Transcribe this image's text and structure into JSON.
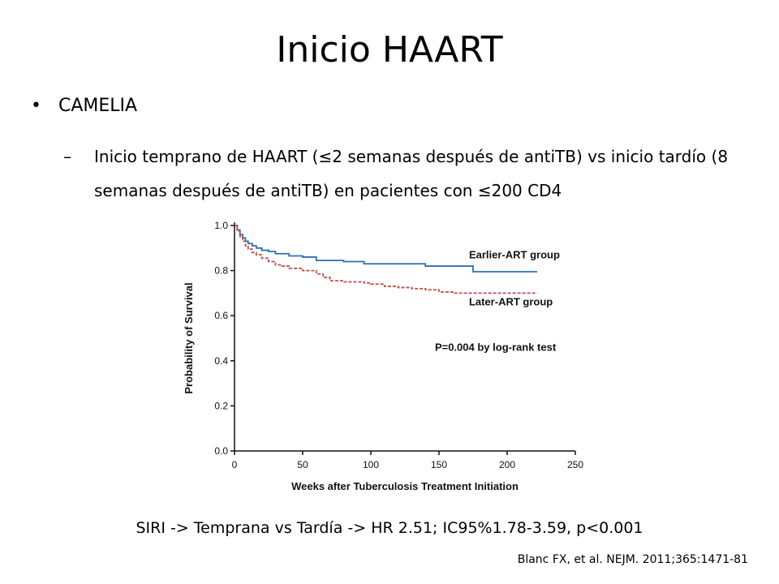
{
  "slide": {
    "title": "Inicio HAART",
    "bullet": "CAMELIA",
    "subbullet": "Inicio temprano de HAART (≤2 semanas después de antiTB) vs inicio tardío (8 semanas después de antiTB) en pacientes con ≤200 CD4",
    "footer": "SIRI -> Temprana vs Tardía -> HR 2.51; IC95%1.78-3.59, p<0.001",
    "citation": "Blanc FX, et al. NEJM. 2011;365:1471-81",
    "bullet_glyph": "•",
    "dash_glyph": "–"
  },
  "chart_data": {
    "type": "line",
    "step": true,
    "xlabel": "Weeks after Tuberculosis Treatment Initiation",
    "ylabel": "Probability of Survival",
    "xlim": [
      0,
      250
    ],
    "ylim": [
      0,
      1.0
    ],
    "xticks": [
      0,
      50,
      100,
      150,
      200,
      250
    ],
    "yticks": [
      "0.0",
      "0.2",
      "0.4",
      "0.6",
      "0.8",
      "1.0"
    ],
    "grid": false,
    "annotation": "P=0.004 by log-rank test",
    "series": [
      {
        "name": "Earlier-ART group",
        "color": "#2e6db4",
        "dash": false,
        "x": [
          0,
          2,
          4,
          6,
          8,
          10,
          13,
          16,
          20,
          25,
          30,
          40,
          50,
          60,
          80,
          95,
          100,
          110,
          125,
          140,
          172,
          175,
          190,
          200,
          222
        ],
        "y": [
          1.0,
          0.98,
          0.96,
          0.945,
          0.93,
          0.92,
          0.91,
          0.9,
          0.89,
          0.885,
          0.875,
          0.865,
          0.86,
          0.845,
          0.84,
          0.83,
          0.83,
          0.83,
          0.83,
          0.82,
          0.82,
          0.795,
          0.795,
          0.795,
          0.795
        ]
      },
      {
        "name": "Later-ART group",
        "color": "#c0504d",
        "dash": true,
        "x": [
          0,
          2,
          4,
          6,
          8,
          10,
          13,
          16,
          20,
          25,
          30,
          35,
          40,
          50,
          60,
          65,
          70,
          80,
          95,
          100,
          110,
          120,
          130,
          140,
          150,
          160,
          180,
          200,
          222
        ],
        "y": [
          1.0,
          0.975,
          0.95,
          0.93,
          0.91,
          0.895,
          0.88,
          0.87,
          0.855,
          0.84,
          0.825,
          0.82,
          0.81,
          0.8,
          0.785,
          0.77,
          0.755,
          0.75,
          0.745,
          0.74,
          0.73,
          0.725,
          0.72,
          0.715,
          0.705,
          0.7,
          0.7,
          0.7,
          0.7
        ]
      }
    ]
  }
}
